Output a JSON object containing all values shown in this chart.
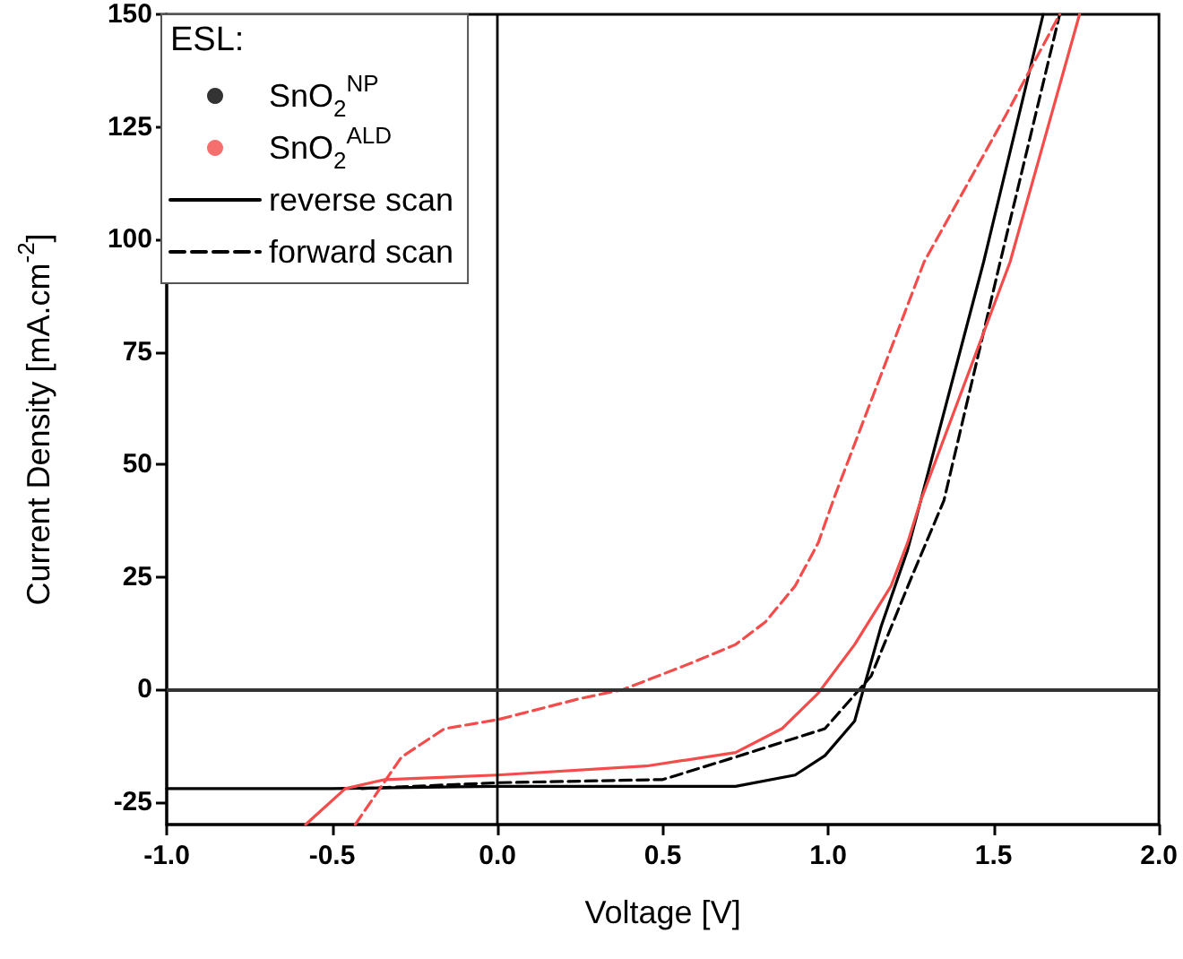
{
  "chart_data": {
    "type": "line",
    "xlabel": "Voltage [V]",
    "ylabel": "Current Density [mA.cm$^{-2}$]",
    "legend_title": "ESL:",
    "legend": "top left",
    "grid": false,
    "xlim": [
      -1.0,
      2.0
    ],
    "xticks": [
      {
        "value": -1.0,
        "label": "-1.0"
      },
      {
        "value": -0.5,
        "label": "-0.5"
      },
      {
        "value": 0,
        "label": "0.0"
      },
      {
        "value": 0.5,
        "label": "0.5"
      },
      {
        "value": 1.0,
        "label": "1.0"
      },
      {
        "value": 1.5,
        "label": "1.5"
      },
      {
        "value": 2.0,
        "label": "2.0"
      }
    ],
    "ylim": [
      -30,
      150
    ],
    "yticks": [
      -25,
      0,
      25,
      50,
      75,
      100,
      125,
      150
    ],
    "ref_lines": [
      {
        "axis": "x",
        "value": 0,
        "color": "#000000"
      },
      {
        "axis": "y",
        "value": 0,
        "color": "#333333"
      }
    ],
    "series": [
      {
        "type": "scatter",
        "name": "SnO$_{2}$$^{NP}$",
        "color": "#000000",
        "marker": "circle"
      },
      {
        "type": "scatter",
        "name": "SnO$_{2}$$^{ALD}$",
        "color": "#f44b4b",
        "marker": "circle"
      },
      {
        "name": "reverse scan",
        "color": "#000000",
        "line_style": "solid"
      },
      {
        "name": "forward scan",
        "color": "#000000",
        "line_style": "dashed"
      },
      {
        "color": "#000000",
        "line_style": "solid",
        "x": [
          -1.0,
          -0.5,
          0.0,
          0.5,
          0.72,
          0.9,
          0.99,
          1.08,
          1.11,
          1.16,
          1.24,
          1.28,
          1.47,
          1.65
        ],
        "values": [
          -22,
          -22,
          -21.5,
          -21.5,
          -21.5,
          -19,
          -14.7,
          -7,
          1,
          14,
          31,
          42,
          95,
          150
        ]
      },
      {
        "color": "#000000",
        "line_style": "dashed",
        "x": [
          -0.41,
          0,
          0.5,
          0.72,
          0.99,
          1.13,
          1.25,
          1.35,
          1.52,
          1.7
        ],
        "values": [
          -22,
          -20.7,
          -20,
          -15,
          -8.7,
          3,
          24.6,
          42,
          95,
          150
        ]
      },
      {
        "color": "#f44b4b",
        "line_style": "solid",
        "x": [
          -0.58,
          -0.46,
          -0.34,
          0,
          0.45,
          0.72,
          0.86,
          0.97,
          1.08,
          1.19,
          1.24,
          1.28,
          1.55,
          1.76
        ],
        "values": [
          -30,
          -22,
          -20,
          -19,
          -17,
          -14,
          -8.7,
          -0.8,
          10,
          23,
          32.6,
          42,
          95,
          150
        ]
      },
      {
        "color": "#f44b4b",
        "line_style": "dashed",
        "x": [
          -0.43,
          -0.29,
          -0.16,
          0,
          0.25,
          0.38,
          0.59,
          0.72,
          0.81,
          0.9,
          0.97,
          1.02,
          1.29,
          1.54,
          1.7
        ],
        "values": [
          -30,
          -15,
          -8.7,
          -6.7,
          -2,
          0,
          6,
          10,
          15,
          23,
          32.6,
          43,
          95,
          128,
          150
        ]
      }
    ]
  }
}
